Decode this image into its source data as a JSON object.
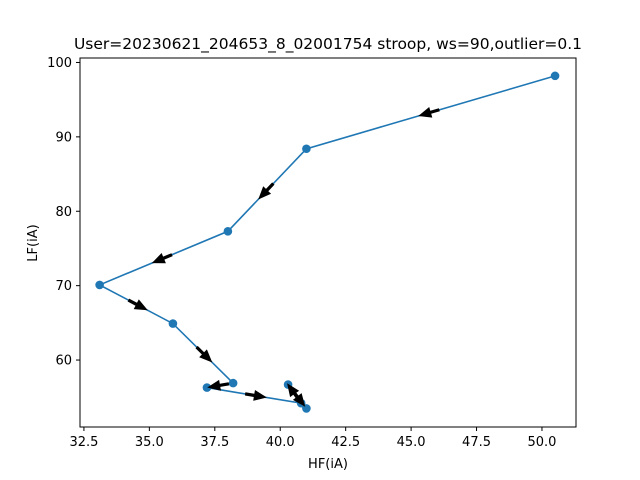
{
  "chart_data": {
    "type": "line",
    "title": "User=20230621_204653_8_02001754 stroop, ws=90,outlier=0.1",
    "xlabel": "HF(iA)",
    "ylabel": "LF(iA)",
    "xlim": [
      32.35,
      51.3
    ],
    "ylim": [
      51.0,
      100.6
    ],
    "xticks": [
      32.5,
      35.0,
      37.5,
      40.0,
      42.5,
      45.0,
      47.5,
      50.0
    ],
    "xtick_labels": [
      "32.5",
      "35.0",
      "37.5",
      "40.0",
      "42.5",
      "45.0",
      "47.5",
      "50.0"
    ],
    "yticks": [
      60,
      70,
      80,
      90,
      100
    ],
    "ytick_labels": [
      "60",
      "70",
      "80",
      "90",
      "100"
    ],
    "grid": false,
    "line_color": "#1f77b4",
    "arrow_color": "#000000",
    "series": [
      {
        "x": [
          50.5,
          41.0,
          38.0,
          33.1,
          35.9,
          38.2,
          37.2,
          40.8,
          40.3,
          41.0
        ],
        "y": [
          98.2,
          88.4,
          77.3,
          70.1,
          64.9,
          56.9,
          56.3,
          54.2,
          56.7,
          53.5
        ]
      }
    ]
  }
}
